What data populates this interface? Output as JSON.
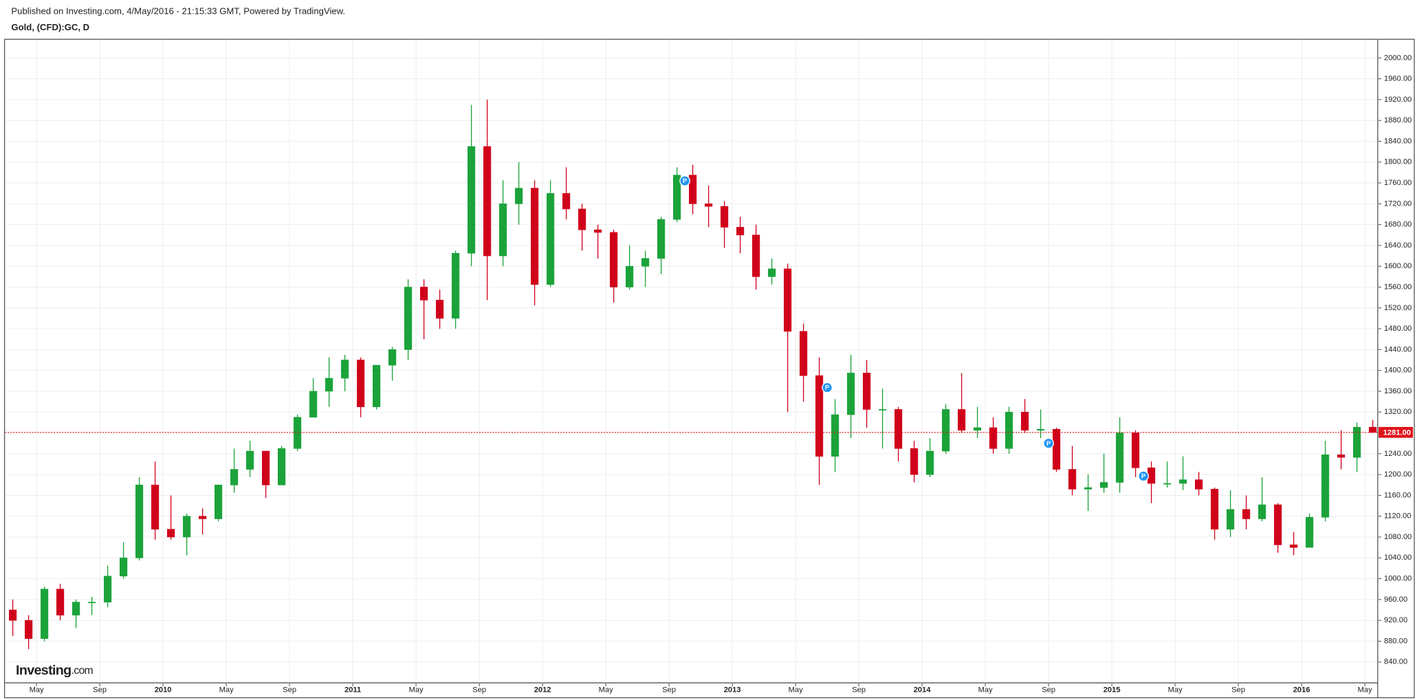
{
  "header": {
    "published": "Published on Investing.com, 4/May/2016 - 21:15:33 GMT, Powered by TradingView.",
    "title": "Gold, (CFD):GC, D"
  },
  "logo": {
    "name": "Investing",
    "suffix": ".com"
  },
  "chart_data": {
    "type": "candlestick",
    "categories": [
      "2009-03",
      "2009-04",
      "2009-05",
      "2009-06",
      "2009-07",
      "2009-08",
      "2009-09",
      "2009-10",
      "2009-11",
      "2009-12",
      "2010-01",
      "2010-02",
      "2010-03",
      "2010-04",
      "2010-05",
      "2010-06",
      "2010-07",
      "2010-08",
      "2010-09",
      "2010-10",
      "2010-11",
      "2010-12",
      "2011-01",
      "2011-02",
      "2011-03",
      "2011-04",
      "2011-05",
      "2011-06",
      "2011-07",
      "2011-08",
      "2011-09",
      "2011-10",
      "2011-11",
      "2011-12",
      "2012-01",
      "2012-02",
      "2012-03",
      "2012-04",
      "2012-05",
      "2012-06",
      "2012-07",
      "2012-08",
      "2012-09",
      "2012-10",
      "2012-11",
      "2012-12",
      "2013-01",
      "2013-02",
      "2013-03",
      "2013-04",
      "2013-05",
      "2013-06",
      "2013-07",
      "2013-08",
      "2013-09",
      "2013-10",
      "2013-11",
      "2013-12",
      "2014-01",
      "2014-02",
      "2014-03",
      "2014-04",
      "2014-05",
      "2014-06",
      "2014-07",
      "2014-08",
      "2014-09",
      "2014-10",
      "2014-11",
      "2014-12",
      "2015-01",
      "2015-02",
      "2015-03",
      "2015-04",
      "2015-05",
      "2015-06",
      "2015-07",
      "2015-08",
      "2015-09",
      "2015-10",
      "2015-11",
      "2015-12",
      "2016-01",
      "2016-02",
      "2016-03",
      "2016-04",
      "2016-05"
    ],
    "open": [
      940,
      920,
      885,
      980,
      930,
      955,
      955,
      1005,
      1040,
      1180,
      1095,
      1080,
      1120,
      1115,
      1180,
      1210,
      1245,
      1180,
      1250,
      1310,
      1360,
      1385,
      1420,
      1330,
      1410,
      1440,
      1560,
      1535,
      1500,
      1625,
      1830,
      1620,
      1720,
      1750,
      1565,
      1740,
      1710,
      1670,
      1665,
      1560,
      1600,
      1615,
      1690,
      1775,
      1720,
      1715,
      1675,
      1660,
      1580,
      1595,
      1475,
      1390,
      1235,
      1315,
      1395,
      1325,
      1325,
      1250,
      1200,
      1245,
      1325,
      1285,
      1290,
      1250,
      1320,
      1285,
      1287,
      1210,
      1172,
      1175,
      1185,
      1280,
      1213,
      1183,
      1183,
      1190,
      1172,
      1095,
      1133,
      1115,
      1142,
      1065,
      1060,
      1118,
      1238,
      1233,
      1291
    ],
    "high": [
      960,
      930,
      985,
      990,
      960,
      965,
      1025,
      1070,
      1195,
      1225,
      1160,
      1125,
      1135,
      1180,
      1250,
      1265,
      1245,
      1255,
      1315,
      1385,
      1425,
      1430,
      1425,
      1410,
      1445,
      1575,
      1575,
      1555,
      1630,
      1910,
      1920,
      1765,
      1800,
      1765,
      1765,
      1790,
      1720,
      1680,
      1670,
      1640,
      1630,
      1695,
      1790,
      1795,
      1755,
      1725,
      1695,
      1680,
      1615,
      1605,
      1490,
      1425,
      1345,
      1430,
      1420,
      1365,
      1330,
      1265,
      1270,
      1335,
      1395,
      1330,
      1310,
      1330,
      1345,
      1325,
      1290,
      1255,
      1200,
      1240,
      1310,
      1285,
      1225,
      1225,
      1235,
      1205,
      1175,
      1170,
      1160,
      1195,
      1145,
      1090,
      1125,
      1265,
      1285,
      1300,
      1305
    ],
    "low": [
      890,
      865,
      880,
      920,
      905,
      930,
      945,
      1000,
      1035,
      1075,
      1075,
      1045,
      1085,
      1110,
      1165,
      1195,
      1155,
      1180,
      1245,
      1310,
      1330,
      1360,
      1310,
      1325,
      1380,
      1420,
      1460,
      1480,
      1480,
      1600,
      1535,
      1600,
      1680,
      1525,
      1560,
      1690,
      1630,
      1615,
      1530,
      1555,
      1560,
      1585,
      1685,
      1700,
      1675,
      1635,
      1625,
      1555,
      1565,
      1320,
      1340,
      1180,
      1205,
      1270,
      1290,
      1250,
      1225,
      1185,
      1195,
      1240,
      1280,
      1270,
      1240,
      1240,
      1280,
      1270,
      1205,
      1160,
      1130,
      1165,
      1165,
      1195,
      1145,
      1175,
      1170,
      1160,
      1075,
      1080,
      1095,
      1110,
      1050,
      1045,
      1060,
      1110,
      1210,
      1205,
      1280
    ],
    "close": [
      920,
      885,
      980,
      930,
      955,
      955,
      1005,
      1040,
      1180,
      1095,
      1080,
      1120,
      1115,
      1180,
      1210,
      1245,
      1180,
      1250,
      1310,
      1360,
      1385,
      1420,
      1330,
      1410,
      1440,
      1560,
      1535,
      1500,
      1625,
      1830,
      1620,
      1720,
      1750,
      1565,
      1740,
      1710,
      1670,
      1665,
      1560,
      1600,
      1615,
      1690,
      1775,
      1720,
      1715,
      1675,
      1660,
      1580,
      1595,
      1475,
      1390,
      1235,
      1315,
      1395,
      1325,
      1325,
      1250,
      1200,
      1245,
      1325,
      1285,
      1290,
      1250,
      1320,
      1285,
      1287,
      1210,
      1172,
      1175,
      1185,
      1280,
      1213,
      1183,
      1183,
      1190,
      1172,
      1095,
      1133,
      1115,
      1142,
      1065,
      1060,
      1118,
      1238,
      1233,
      1291,
      1281
    ],
    "up_color": "#1ba33a",
    "down_color": "#d0021b",
    "ylim": [
      800,
      2035
    ],
    "yticks": [
      {
        "value": 840,
        "label": "840.00"
      },
      {
        "value": 880,
        "label": "880.00"
      },
      {
        "value": 920,
        "label": "920.00"
      },
      {
        "value": 960,
        "label": "960.00"
      },
      {
        "value": 1000,
        "label": "1000.00"
      },
      {
        "value": 1040,
        "label": "1040.00"
      },
      {
        "value": 1080,
        "label": "1080.00"
      },
      {
        "value": 1120,
        "label": "1120.00"
      },
      {
        "value": 1160,
        "label": "1160.00"
      },
      {
        "value": 1200,
        "label": "1200.00"
      },
      {
        "value": 1240,
        "label": "1240.00"
      },
      {
        "value": 1280,
        "label": "1280.00"
      },
      {
        "value": 1320,
        "label": "1320.00"
      },
      {
        "value": 1360,
        "label": "1360.00"
      },
      {
        "value": 1400,
        "label": "1400.00"
      },
      {
        "value": 1440,
        "label": "1440.00"
      },
      {
        "value": 1480,
        "label": "1480.00"
      },
      {
        "value": 1520,
        "label": "1520.00"
      },
      {
        "value": 1560,
        "label": "1560.00"
      },
      {
        "value": 1600,
        "label": "1600.00"
      },
      {
        "value": 1640,
        "label": "1640.00"
      },
      {
        "value": 1680,
        "label": "1680.00"
      },
      {
        "value": 1720,
        "label": "1720.00"
      },
      {
        "value": 1760,
        "label": "1760.00"
      },
      {
        "value": 1800,
        "label": "1800.00"
      },
      {
        "value": 1840,
        "label": "1840.00"
      },
      {
        "value": 1880,
        "label": "1880.00"
      },
      {
        "value": 1920,
        "label": "1920.00"
      },
      {
        "value": 1960,
        "label": "1960.00"
      },
      {
        "value": 2000,
        "label": "2000.00"
      }
    ],
    "xticks": [
      {
        "value": "2009-05",
        "label": "May"
      },
      {
        "value": "2009-09",
        "label": "Sep"
      },
      {
        "value": "2010-01",
        "label": "2010"
      },
      {
        "value": "2010-05",
        "label": "May"
      },
      {
        "value": "2010-09",
        "label": "Sep"
      },
      {
        "value": "2011-01",
        "label": "2011"
      },
      {
        "value": "2011-05",
        "label": "May"
      },
      {
        "value": "2011-09",
        "label": "Sep"
      },
      {
        "value": "2012-01",
        "label": "2012"
      },
      {
        "value": "2012-05",
        "label": "May"
      },
      {
        "value": "2012-09",
        "label": "Sep"
      },
      {
        "value": "2013-01",
        "label": "2013"
      },
      {
        "value": "2013-05",
        "label": "May"
      },
      {
        "value": "2013-09",
        "label": "Sep"
      },
      {
        "value": "2014-01",
        "label": "2014"
      },
      {
        "value": "2014-05",
        "label": "May"
      },
      {
        "value": "2014-09",
        "label": "Sep"
      },
      {
        "value": "2015-01",
        "label": "2015"
      },
      {
        "value": "2015-05",
        "label": "May"
      },
      {
        "value": "2015-09",
        "label": "Sep"
      },
      {
        "value": "2016-01",
        "label": "2016"
      },
      {
        "value": "2016-05",
        "label": "May"
      }
    ],
    "grid": true,
    "last_price": {
      "value": 1281,
      "label": "1281.00",
      "color": "#e0121b"
    },
    "markers": [
      {
        "label": "P",
        "x": "2012-10",
        "y": 1764
      },
      {
        "label": "P",
        "x": "2013-07",
        "y": 1367
      },
      {
        "label": "P",
        "x": "2014-09",
        "y": 1260
      },
      {
        "label": "P",
        "x": "2015-03",
        "y": 1197
      }
    ],
    "marker_color": "#2196f3"
  }
}
